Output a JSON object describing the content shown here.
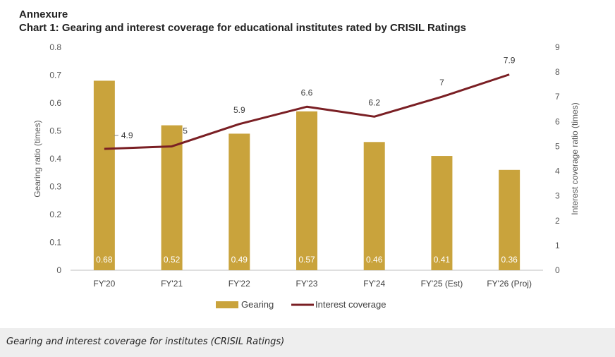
{
  "header": {
    "annexure": "Annexure",
    "title": "Chart 1: Gearing and interest coverage for educational institutes rated by CRISIL Ratings"
  },
  "caption": "Gearing and interest coverage for institutes (CRISIL Ratings)",
  "colors": {
    "bar": "#c9a33c",
    "line": "#7a1f24",
    "axis": "#bfbfbf"
  },
  "chart_data": {
    "type": "bar",
    "title": "Chart 1: Gearing and interest coverage for educational institutes rated by CRISIL Ratings",
    "categories": [
      "FY'20",
      "FY'21",
      "FY'22",
      "FY'23",
      "FY'24",
      "FY'25 (Est)",
      "FY'26 (Proj)"
    ],
    "series": [
      {
        "name": "Gearing",
        "type": "bar",
        "axis": "left",
        "values": [
          0.68,
          0.52,
          0.49,
          0.57,
          0.46,
          0.41,
          0.36
        ],
        "labels": [
          "0.68",
          "0.52",
          "0.49",
          "0.57",
          "0.46",
          "0.41",
          "0.36"
        ]
      },
      {
        "name": "Interest coverage",
        "type": "line",
        "axis": "right",
        "values": [
          4.9,
          5,
          5.9,
          6.6,
          6.2,
          7,
          7.9
        ],
        "labels": [
          "4.9",
          "5",
          "5.9",
          "6.6",
          "6.2",
          "7",
          "7.9"
        ]
      }
    ],
    "ylabel_left": "Gearing ratio (times)",
    "ylabel_right": "Interest coverage ratio (times)",
    "ylim_left": [
      0,
      0.8
    ],
    "ylim_right": [
      0,
      9
    ],
    "yticks_left": [
      "0",
      "0.1",
      "0.2",
      "0.3",
      "0.4",
      "0.5",
      "0.6",
      "0.7",
      "0.8"
    ],
    "yticks_right": [
      "0",
      "1",
      "2",
      "3",
      "4",
      "5",
      "6",
      "7",
      "8",
      "9"
    ],
    "grid": false,
    "legend": "bottom"
  }
}
